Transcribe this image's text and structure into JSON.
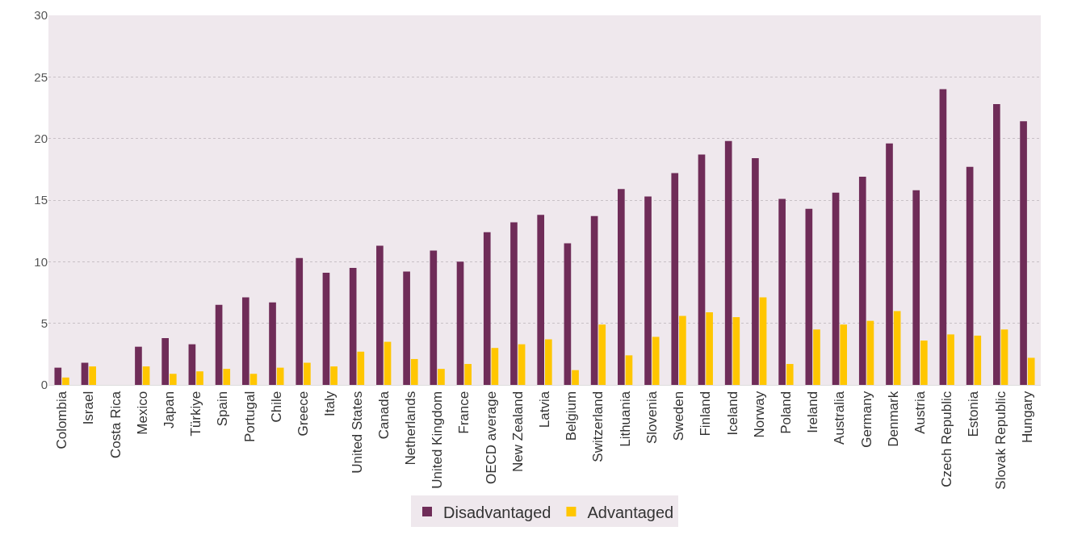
{
  "chart_data": {
    "type": "bar",
    "categories": [
      "Colombia",
      "Israel",
      "Costa Rica",
      "Mexico",
      "Japan",
      "Türkiye",
      "Spain",
      "Portugal",
      "Chile",
      "Greece",
      "Italy",
      "United States",
      "Canada",
      "Netherlands",
      "United Kingdom",
      "France",
      "OECD average",
      "New Zealand",
      "Latvia",
      "Belgium",
      "Switzerland",
      "Lithuania",
      "Slovenia",
      "Sweden",
      "Finland",
      "Iceland",
      "Norway",
      "Poland",
      "Ireland",
      "Australia",
      "Germany",
      "Denmark",
      "Austria",
      "Czech Republic",
      "Estonia",
      "Slovak Republic",
      "Hungary"
    ],
    "series": [
      {
        "name": "Disadvantaged",
        "color": "#6f2c58",
        "values": [
          1.4,
          1.8,
          null,
          3.1,
          3.8,
          3.3,
          6.5,
          7.1,
          6.7,
          10.3,
          9.1,
          9.5,
          11.3,
          9.2,
          10.9,
          10.0,
          12.4,
          13.2,
          13.8,
          11.5,
          13.7,
          15.9,
          15.3,
          17.2,
          18.7,
          19.8,
          18.4,
          15.1,
          14.3,
          15.6,
          16.9,
          19.6,
          15.8,
          24.0,
          17.7,
          22.8,
          21.4
        ]
      },
      {
        "name": "Advantaged",
        "color": "#ffc600",
        "values": [
          0.6,
          1.5,
          null,
          1.5,
          0.9,
          1.1,
          1.3,
          0.9,
          1.4,
          1.8,
          1.5,
          2.7,
          3.5,
          2.1,
          1.3,
          1.7,
          3.0,
          3.3,
          3.7,
          1.2,
          4.9,
          2.4,
          3.9,
          5.6,
          5.9,
          5.5,
          7.1,
          1.7,
          4.5,
          4.9,
          5.2,
          6.0,
          3.6,
          4.1,
          4.0,
          4.5,
          2.2
        ]
      }
    ],
    "ylim": [
      0,
      30
    ],
    "yticks": [
      0,
      5,
      10,
      15,
      20,
      25,
      30
    ],
    "grid": "y",
    "legend": "bottom"
  }
}
